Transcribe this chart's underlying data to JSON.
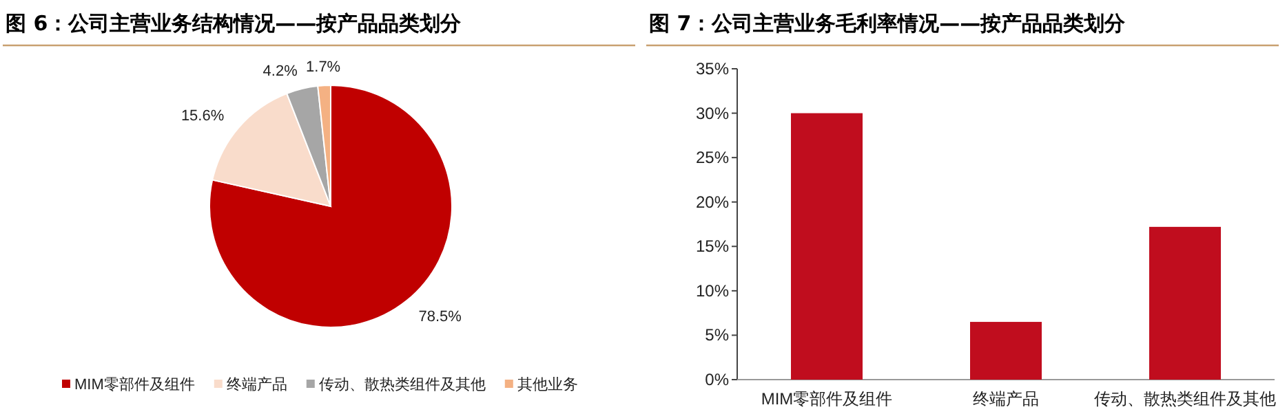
{
  "chart_data": [
    {
      "type": "pie",
      "title": "图 6：公司主营业务结构情况——按产品品类划分",
      "categories": [
        "MIM零部件及组件",
        "终端产品",
        "传动、散热类组件及其他",
        "其他业务"
      ],
      "values": [
        78.5,
        15.6,
        4.2,
        1.7
      ],
      "colors": [
        "#c00000",
        "#f9dccb",
        "#a6a6a6",
        "#f4b183"
      ],
      "value_labels": [
        "78.5%",
        "15.6%",
        "4.2%",
        "1.7%"
      ],
      "legend": "bottom"
    },
    {
      "type": "bar",
      "title": "图 7：公司主营业务毛利率情况——按产品品类划分",
      "categories": [
        "MIM零部件及组件",
        "终端产品",
        "传动、散热类组件及其他"
      ],
      "values": [
        30.0,
        6.5,
        17.2
      ],
      "color": "#c00d1e",
      "ylim": [
        0,
        35
      ],
      "yticks": [
        {
          "value": 0,
          "label": "0%"
        },
        {
          "value": 5,
          "label": "5%"
        },
        {
          "value": 10,
          "label": "10%"
        },
        {
          "value": 15,
          "label": "15%"
        },
        {
          "value": 20,
          "label": "20%"
        },
        {
          "value": 25,
          "label": "25%"
        },
        {
          "value": 30,
          "label": "30%"
        },
        {
          "value": 35,
          "label": "35%"
        }
      ]
    }
  ]
}
